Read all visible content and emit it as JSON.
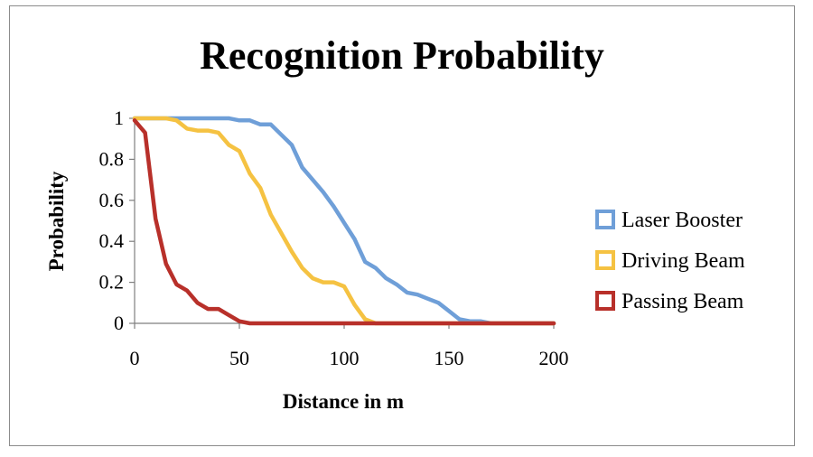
{
  "chart_data": {
    "type": "line",
    "title": "Recognition Probability",
    "xlabel": "Distance in m",
    "ylabel": "Probability",
    "xlim": [
      0,
      200
    ],
    "ylim": [
      0,
      1
    ],
    "xticks": [
      0,
      50,
      100,
      150,
      200
    ],
    "yticks": [
      0,
      0.2,
      0.4,
      0.6,
      0.8,
      1
    ],
    "ytick_labels": [
      "0",
      "0.2",
      "0.4",
      "0.6",
      "0.8",
      "1"
    ],
    "grid": false,
    "legend_position": "right",
    "series": [
      {
        "name": "Laser Booster",
        "color": "#6f9fd8",
        "x": [
          0,
          10,
          20,
          30,
          40,
          45,
          50,
          55,
          60,
          65,
          70,
          75,
          80,
          85,
          90,
          95,
          100,
          105,
          110,
          115,
          120,
          125,
          130,
          135,
          140,
          145,
          150,
          155,
          160,
          165,
          170,
          180,
          190,
          200
        ],
        "y": [
          1,
          1,
          1,
          1,
          1,
          1,
          0.99,
          0.99,
          0.97,
          0.97,
          0.92,
          0.87,
          0.76,
          0.7,
          0.64,
          0.57,
          0.49,
          0.41,
          0.3,
          0.27,
          0.22,
          0.19,
          0.15,
          0.14,
          0.12,
          0.1,
          0.06,
          0.02,
          0.01,
          0.01,
          0,
          0,
          0,
          0
        ]
      },
      {
        "name": "Driving Beam",
        "color": "#f5c242",
        "x": [
          0,
          5,
          10,
          15,
          20,
          25,
          30,
          35,
          40,
          45,
          50,
          55,
          60,
          65,
          70,
          75,
          80,
          85,
          90,
          95,
          100,
          105,
          110,
          115,
          120,
          150,
          200
        ],
        "y": [
          1,
          1,
          1,
          1,
          0.99,
          0.95,
          0.94,
          0.94,
          0.93,
          0.87,
          0.84,
          0.73,
          0.66,
          0.53,
          0.44,
          0.35,
          0.27,
          0.22,
          0.2,
          0.2,
          0.18,
          0.09,
          0.02,
          0,
          0,
          0,
          0
        ]
      },
      {
        "name": "Passing Beam",
        "color": "#b8302a",
        "x": [
          0,
          5,
          10,
          15,
          20,
          25,
          30,
          35,
          40,
          45,
          50,
          55,
          60,
          100,
          150,
          200
        ],
        "y": [
          0.99,
          0.93,
          0.51,
          0.29,
          0.19,
          0.16,
          0.1,
          0.07,
          0.07,
          0.04,
          0.01,
          0,
          0,
          0,
          0,
          0
        ]
      }
    ]
  }
}
